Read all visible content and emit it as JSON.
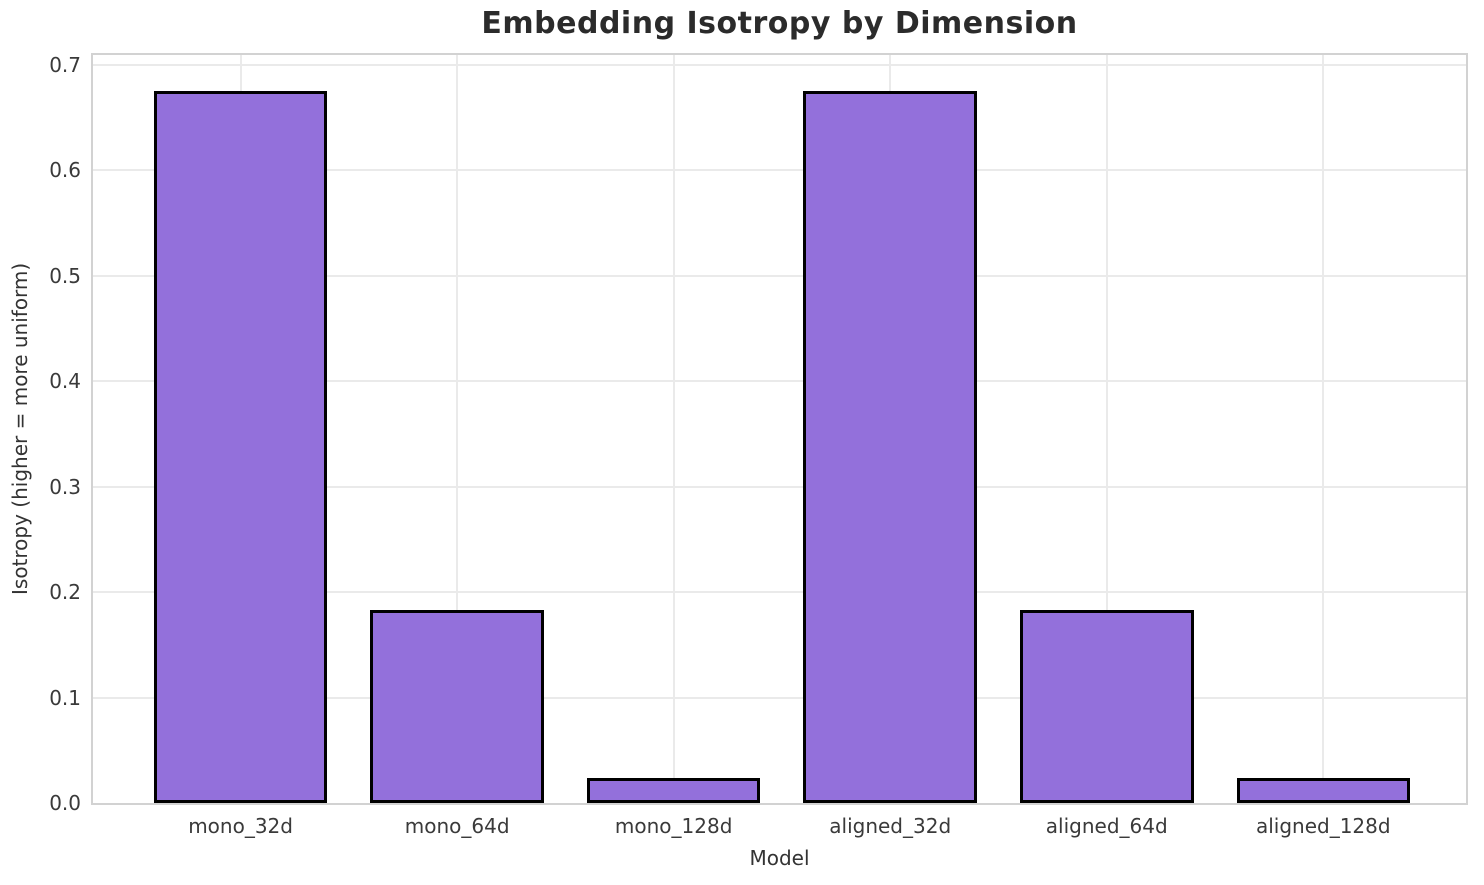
{
  "chart_data": {
    "type": "bar",
    "title": "Embedding Isotropy by Dimension",
    "xlabel": "Model",
    "ylabel": "Isotropy (higher = more uniform)",
    "categories": [
      "mono_32d",
      "mono_64d",
      "mono_128d",
      "aligned_32d",
      "aligned_64d",
      "aligned_128d"
    ],
    "values": [
      0.675,
      0.183,
      0.024,
      0.675,
      0.183,
      0.024
    ],
    "yticks": [
      "0.0",
      "0.1",
      "0.2",
      "0.3",
      "0.4",
      "0.5",
      "0.6",
      "0.7"
    ],
    "ylim": [
      0,
      0.709
    ],
    "grid": true,
    "legend": null,
    "bar_color": "#9370DB",
    "bar_edge_color": "#000000",
    "background_color": "#ffffff"
  }
}
